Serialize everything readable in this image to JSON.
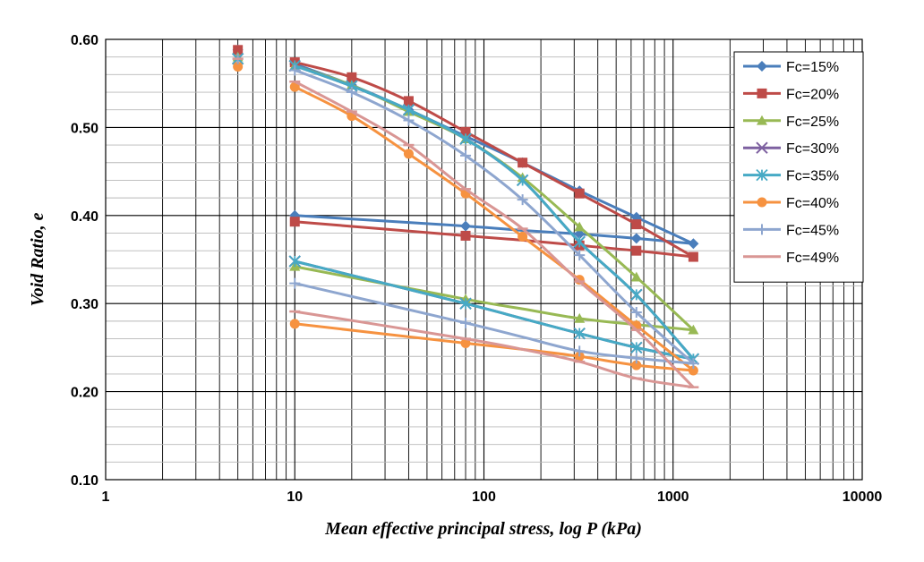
{
  "chart_data": {
    "type": "line",
    "title": "",
    "xlabel": "Mean effective principal stress, log P (kPa)",
    "ylabel": "Void Ratio, e",
    "xscale": "log",
    "xlim": [
      1,
      10000
    ],
    "ylim": [
      0.1,
      0.6
    ],
    "x_ticks": [
      "1",
      "10",
      "100",
      "1000",
      "10000"
    ],
    "y_ticks": [
      "0.10",
      "0.20",
      "0.30",
      "0.40",
      "0.50",
      "0.60"
    ],
    "grid": true,
    "legend_position": "top-right",
    "series": [
      {
        "name": "Fc=15%",
        "color": "#4a7ebb",
        "marker": "diamond",
        "initial": {
          "x": 5,
          "y": 0.588
        },
        "loading": [
          [
            10,
            0.572
          ],
          [
            20,
            0.548
          ],
          [
            40,
            0.52
          ],
          [
            80,
            0.49
          ],
          [
            160,
            0.46
          ],
          [
            320,
            0.428
          ],
          [
            640,
            0.398
          ],
          [
            1280,
            0.368
          ]
        ],
        "unloading": [
          [
            1280,
            0.368
          ],
          [
            640,
            0.374
          ],
          [
            320,
            0.379
          ],
          [
            160,
            0.383
          ],
          [
            80,
            0.388
          ],
          [
            10,
            0.4
          ]
        ]
      },
      {
        "name": "Fc=20%",
        "color": "#be4b48",
        "marker": "square",
        "initial": {
          "x": 5,
          "y": 0.588
        },
        "loading": [
          [
            10,
            0.574
          ],
          [
            20,
            0.557
          ],
          [
            40,
            0.53
          ],
          [
            80,
            0.495
          ],
          [
            160,
            0.46
          ],
          [
            320,
            0.425
          ],
          [
            640,
            0.39
          ],
          [
            1280,
            0.353
          ]
        ],
        "unloading": [
          [
            1280,
            0.353
          ],
          [
            640,
            0.36
          ],
          [
            320,
            0.366
          ],
          [
            160,
            0.372
          ],
          [
            80,
            0.377
          ],
          [
            10,
            0.393
          ]
        ]
      },
      {
        "name": "Fc=25%",
        "color": "#98b954",
        "marker": "triangle",
        "initial": {
          "x": 5,
          "y": 0.58
        },
        "loading": [
          [
            10,
            0.57
          ],
          [
            20,
            0.548
          ],
          [
            40,
            0.518
          ],
          [
            80,
            0.487
          ],
          [
            160,
            0.443
          ],
          [
            320,
            0.387
          ],
          [
            640,
            0.33
          ],
          [
            1280,
            0.27
          ]
        ],
        "unloading": [
          [
            1280,
            0.27
          ],
          [
            640,
            0.276
          ],
          [
            320,
            0.283
          ],
          [
            160,
            0.294
          ],
          [
            80,
            0.305
          ],
          [
            10,
            0.342
          ]
        ]
      },
      {
        "name": "Fc=30%",
        "color": "#7d60a0",
        "marker": "x",
        "initial": {
          "x": 5,
          "y": 0.578
        },
        "loading": [
          [
            10,
            0.57
          ],
          [
            20,
            0.547
          ],
          [
            40,
            0.52
          ],
          [
            80,
            0.487
          ],
          [
            160,
            0.44
          ],
          [
            320,
            0.37
          ],
          [
            640,
            0.31
          ],
          [
            1280,
            0.237
          ]
        ],
        "unloading": [
          [
            1280,
            0.237
          ],
          [
            640,
            0.25
          ],
          [
            320,
            0.266
          ],
          [
            160,
            0.283
          ],
          [
            80,
            0.3
          ],
          [
            10,
            0.348
          ]
        ]
      },
      {
        "name": "Fc=35%",
        "color": "#46aac5",
        "marker": "asterisk",
        "initial": {
          "x": 5,
          "y": 0.578
        },
        "loading": [
          [
            10,
            0.57
          ],
          [
            20,
            0.547
          ],
          [
            40,
            0.52
          ],
          [
            80,
            0.487
          ],
          [
            160,
            0.44
          ],
          [
            320,
            0.37
          ],
          [
            640,
            0.31
          ],
          [
            1280,
            0.237
          ]
        ],
        "unloading": [
          [
            1280,
            0.237
          ],
          [
            640,
            0.25
          ],
          [
            320,
            0.266
          ],
          [
            160,
            0.283
          ],
          [
            80,
            0.3
          ],
          [
            10,
            0.348
          ]
        ]
      },
      {
        "name": "Fc=40%",
        "color": "#f69240",
        "marker": "circle",
        "initial": {
          "x": 5,
          "y": 0.569
        },
        "loading": [
          [
            10,
            0.546
          ],
          [
            20,
            0.513
          ],
          [
            40,
            0.47
          ],
          [
            80,
            0.425
          ],
          [
            160,
            0.376
          ],
          [
            320,
            0.327
          ],
          [
            640,
            0.275
          ],
          [
            1280,
            0.224
          ]
        ],
        "unloading": [
          [
            1280,
            0.224
          ],
          [
            640,
            0.23
          ],
          [
            320,
            0.24
          ],
          [
            160,
            0.248
          ],
          [
            80,
            0.255
          ],
          [
            10,
            0.277
          ]
        ]
      },
      {
        "name": "Fc=45%",
        "color": "#8ea6cf",
        "marker": "plus",
        "initial": {
          "x": 5,
          "y": 0.578
        },
        "loading": [
          [
            10,
            0.565
          ],
          [
            20,
            0.54
          ],
          [
            40,
            0.508
          ],
          [
            80,
            0.468
          ],
          [
            160,
            0.418
          ],
          [
            320,
            0.355
          ],
          [
            640,
            0.29
          ],
          [
            1280,
            0.232
          ]
        ],
        "unloading": [
          [
            1280,
            0.232
          ],
          [
            640,
            0.238
          ],
          [
            320,
            0.246
          ],
          [
            160,
            0.262
          ],
          [
            80,
            0.278
          ],
          [
            10,
            0.323
          ]
        ]
      },
      {
        "name": "Fc=49%",
        "color": "#d99694",
        "marker": "dash",
        "initial": {
          "x": 5,
          "y": 0.578
        },
        "loading": [
          [
            10,
            0.552
          ],
          [
            20,
            0.518
          ],
          [
            40,
            0.48
          ],
          [
            80,
            0.43
          ],
          [
            160,
            0.385
          ],
          [
            320,
            0.325
          ],
          [
            640,
            0.27
          ],
          [
            1280,
            0.205
          ]
        ],
        "unloading": [
          [
            1280,
            0.205
          ],
          [
            640,
            0.215
          ],
          [
            320,
            0.234
          ],
          [
            160,
            0.248
          ],
          [
            80,
            0.26
          ],
          [
            10,
            0.291
          ]
        ]
      }
    ]
  }
}
